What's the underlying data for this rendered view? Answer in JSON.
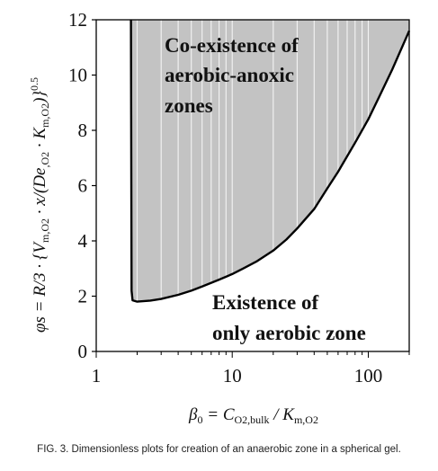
{
  "chart_data": {
    "type": "area",
    "x_scale": "log",
    "xlim": [
      1,
      200
    ],
    "ylim": [
      0,
      12
    ],
    "x_ticks": [
      1,
      10,
      100
    ],
    "x_tick_labels": [
      "1",
      "10",
      "100"
    ],
    "y_ticks": [
      0,
      2,
      4,
      6,
      8,
      10,
      12
    ],
    "y_tick_labels": [
      "0",
      "2",
      "4",
      "6",
      "8",
      "10",
      "12"
    ],
    "grid": "log minor vertical lines inside shaded region",
    "boundary_curve": {
      "x": [
        1.8,
        1.82,
        1.85,
        2,
        2.5,
        3,
        4,
        5,
        6,
        8,
        10,
        12,
        15,
        20,
        25,
        30,
        40,
        50,
        60,
        80,
        100,
        120,
        150,
        200
      ],
      "y": [
        12,
        2.2,
        1.85,
        1.8,
        1.84,
        1.9,
        2.05,
        2.2,
        2.35,
        2.6,
        2.8,
        3.0,
        3.25,
        3.65,
        4.05,
        4.45,
        5.15,
        5.9,
        6.5,
        7.55,
        8.4,
        9.2,
        10.2,
        11.6
      ]
    },
    "shaded_region": "above and right of boundary curve",
    "fill_color": "#c3c3c3",
    "annotations": [
      {
        "region": "shaded",
        "lines": [
          "Co-existence of",
          "aerobic-anoxic",
          "zones"
        ]
      },
      {
        "region": "unshaded",
        "lines": [
          "Existence of",
          "only aerobic zone"
        ]
      }
    ],
    "ylabel": {
      "main": "φs = R/3 · {V",
      "sub1": "m,O2",
      "mid1": " · x/(De",
      "sub2": ",O2",
      "mid2": " · K",
      "sub3": "m,O2",
      "end": ")}",
      "sup": "0.5"
    },
    "xlabel": {
      "main": "β",
      "sub0": "0",
      "mid": " = C",
      "sub1": "O2,bulk",
      "sep": " / K",
      "sub2": "m,O2"
    }
  },
  "caption": "FIG. 3. Dimensionless plots for creation of an anaerobic zone in a spherical gel."
}
